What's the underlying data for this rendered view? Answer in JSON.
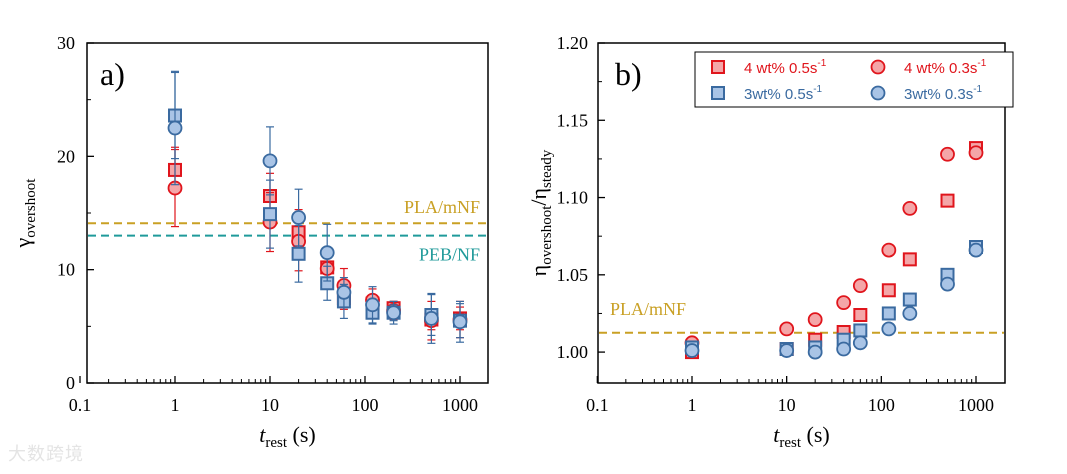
{
  "colors": {
    "red_edge": "#e0151c",
    "red_fill": "#f4a6a8",
    "blue_edge": "#3a6aa0",
    "blue_fill": "#a9c4e6",
    "pla": "#c9a024",
    "peb": "#1f9a9a"
  },
  "watermark": "大数跨境",
  "chart_data": [
    {
      "type": "scatter",
      "panel_label": "a)",
      "xlabel": {
        "main": "t",
        "sub": "rest",
        "unit": " (s)"
      },
      "ylabel": {
        "main": "γ",
        "sub": "overshoot"
      },
      "xscale": "log",
      "xlim": [
        0.1,
        2000
      ],
      "ylim": [
        0,
        30
      ],
      "xticks": [
        0.1,
        1,
        10,
        100,
        1000
      ],
      "xtick_labels": [
        "0.1",
        "1",
        "10",
        "100",
        "1000"
      ],
      "yticks": [
        0,
        10,
        20,
        30
      ],
      "ytick_labels": [
        "0",
        "10",
        "20",
        "30"
      ],
      "x": [
        1,
        10,
        20,
        40,
        60,
        120,
        200,
        500,
        1000
      ],
      "series": [
        {
          "name": "4 wt% 0.5s-1",
          "marker": "square",
          "color": "red",
          "values": [
            18.8,
            16.5,
            13.3,
            10.2,
            7.5,
            7.0,
            6.6,
            5.6,
            5.7
          ],
          "err": [
            2.0,
            2.0,
            2.0,
            1.2,
            1.0,
            0.8,
            0.6,
            0.9,
            1.0
          ]
        },
        {
          "name": "4 wt% 0.3s-1",
          "marker": "circle",
          "color": "red",
          "values": [
            17.2,
            14.2,
            12.5,
            10.1,
            8.6,
            7.3,
            6.4,
            5.5,
            5.6
          ],
          "err": [
            3.4,
            2.6,
            2.6,
            1.4,
            1.5,
            1.0,
            0.8,
            1.7,
            1.6
          ]
        },
        {
          "name": "3wt% 0.5s-1",
          "marker": "square",
          "color": "blue",
          "values": [
            23.6,
            14.9,
            11.4,
            8.8,
            7.2,
            6.2,
            6.2,
            6.0,
            5.5
          ],
          "err": [
            3.8,
            3.0,
            2.5,
            1.5,
            1.5,
            1.0,
            0.7,
            1.8,
            1.5
          ]
        },
        {
          "name": "3wt% 0.3s-1",
          "marker": "circle",
          "color": "blue",
          "values": [
            22.5,
            19.6,
            14.6,
            11.5,
            8.0,
            6.9,
            6.2,
            5.7,
            5.4
          ],
          "err": [
            5.0,
            3.0,
            2.5,
            2.5,
            1.3,
            1.6,
            1.0,
            2.2,
            1.8
          ]
        }
      ],
      "reference_lines": [
        {
          "label": "PLA/mNF",
          "y": 14.1,
          "color": "pla"
        },
        {
          "label": "PEB/NF",
          "y": 13.0,
          "color": "peb"
        }
      ]
    },
    {
      "type": "scatter",
      "panel_label": "b)",
      "xlabel": {
        "main": "t",
        "sub": "rest",
        "unit": " (s)"
      },
      "ylabel": {
        "main": "η",
        "sub": "overshoot",
        "main2": "/η",
        "sub2": "steady"
      },
      "xscale": "log",
      "xlim": [
        0.1,
        3000
      ],
      "ylim": [
        0.98,
        1.2
      ],
      "xticks": [
        0.1,
        1,
        10,
        100,
        1000
      ],
      "xtick_labels": [
        "0.1",
        "1",
        "10",
        "100",
        "1000"
      ],
      "yticks": [
        1.0,
        1.05,
        1.1,
        1.15,
        1.2
      ],
      "ytick_labels": [
        "1.00",
        "1.05",
        "1.10",
        "1.15",
        "1.20"
      ],
      "x": [
        1,
        10,
        20,
        40,
        60,
        120,
        200,
        500,
        1000
      ],
      "series": [
        {
          "name": "4 wt% 0.5s-1",
          "label": "4 wt% 0.5s",
          "sup": "-1",
          "marker": "square",
          "color": "red",
          "values": [
            1.0,
            1.002,
            1.008,
            1.013,
            1.024,
            1.04,
            1.06,
            1.098,
            1.132
          ]
        },
        {
          "name": "4 wt% 0.3s-1",
          "label": "4 wt% 0.3s",
          "sup": "-1",
          "marker": "circle",
          "color": "red",
          "values": [
            1.006,
            1.015,
            1.021,
            1.032,
            1.043,
            1.066,
            1.093,
            1.128,
            1.129
          ]
        },
        {
          "name": "3wt% 0.5s-1",
          "label": "3wt% 0.5s",
          "sup": "-1",
          "marker": "square",
          "color": "blue",
          "values": [
            1.003,
            1.002,
            1.003,
            1.008,
            1.014,
            1.025,
            1.034,
            1.05,
            1.068
          ]
        },
        {
          "name": "3wt% 0.3s-1",
          "label": "3wt% 0.3s",
          "sup": "-1",
          "marker": "circle",
          "color": "blue",
          "values": [
            1.001,
            1.001,
            1.0,
            1.002,
            1.006,
            1.015,
            1.025,
            1.044,
            1.066
          ]
        }
      ],
      "legend_position": "top-right",
      "reference_lines": [
        {
          "label": "PLA/mNF",
          "y": 1.0125,
          "color": "pla"
        }
      ]
    }
  ]
}
